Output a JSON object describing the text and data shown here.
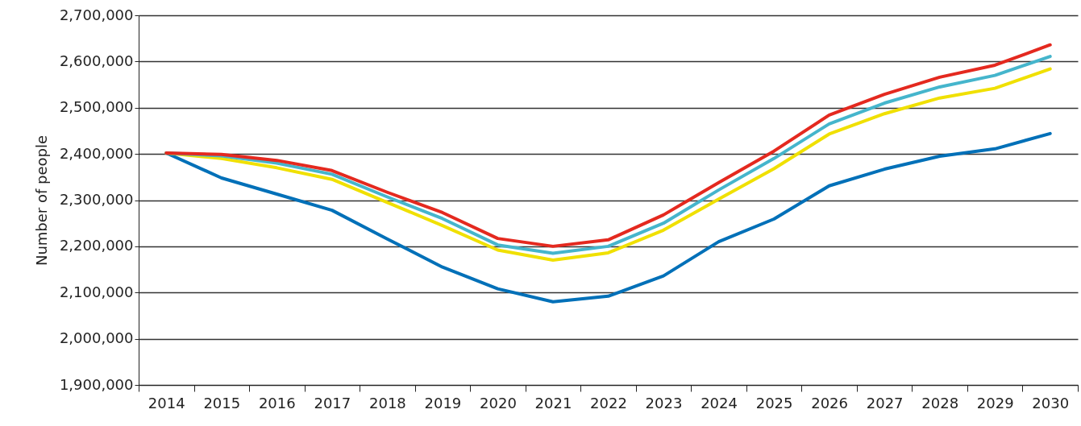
{
  "chart_data": {
    "type": "line",
    "ylabel": "Number of people",
    "categories": [
      "2014",
      "2015",
      "2016",
      "2017",
      "2018",
      "2019",
      "2020",
      "2021",
      "2022",
      "2023",
      "2024",
      "2025",
      "2026",
      "2027",
      "2028",
      "2029",
      "2030"
    ],
    "series": [
      {
        "color": "#0070b8",
        "values": [
          2402000,
          2348000,
          2313000,
          2278000,
          2216000,
          2155000,
          2108000,
          2080000,
          2092000,
          2136000,
          2210000,
          2259000,
          2331000,
          2367000,
          2395000,
          2411000,
          2444000
        ]
      },
      {
        "color": "#f0e000",
        "values": [
          2402000,
          2390000,
          2370000,
          2345000,
          2295000,
          2245000,
          2192000,
          2170000,
          2186000,
          2235000,
          2302000,
          2368000,
          2443000,
          2487000,
          2521000,
          2542000,
          2584000
        ]
      },
      {
        "color": "#45b5cc",
        "values": [
          2402000,
          2396000,
          2380000,
          2356000,
          2307000,
          2260000,
          2203000,
          2185000,
          2200000,
          2250000,
          2322000,
          2390000,
          2465000,
          2510000,
          2545000,
          2570000,
          2611000
        ]
      },
      {
        "color": "#e4291f",
        "values": [
          2402000,
          2399000,
          2386000,
          2364000,
          2317000,
          2273000,
          2217000,
          2200000,
          2214000,
          2268000,
          2338000,
          2406000,
          2484000,
          2529000,
          2566000,
          2592000,
          2636000
        ]
      }
    ],
    "ylim": [
      1900000,
      2700000
    ],
    "yticks": [
      {
        "value": 1900000,
        "label": "1,900,000"
      },
      {
        "value": 2000000,
        "label": "2,000,000"
      },
      {
        "value": 2100000,
        "label": "2,100,000"
      },
      {
        "value": 2200000,
        "label": "2,200,000"
      },
      {
        "value": 2300000,
        "label": "2,300,000"
      },
      {
        "value": 2400000,
        "label": "2,400,000"
      },
      {
        "value": 2500000,
        "label": "2,500,000"
      },
      {
        "value": 2600000,
        "label": "2,600,000"
      },
      {
        "value": 2700000,
        "label": "2,700,000"
      }
    ],
    "grid": "y",
    "marker": "none",
    "line_style": "solid"
  }
}
